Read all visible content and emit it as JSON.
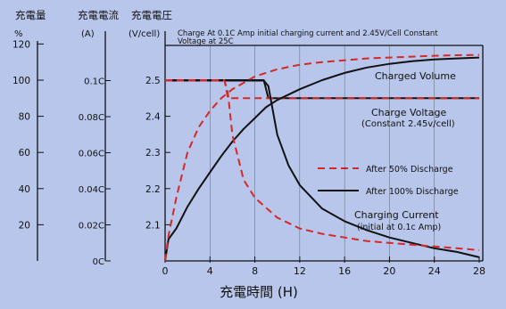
{
  "chart_data": {
    "type": "line",
    "header": {
      "capacity_label": "充電量",
      "current_label": "充電電流",
      "voltage_label": "充電電圧",
      "capacity_unit": "%",
      "current_unit": "(A)",
      "voltage_unit": "(V/cell)"
    },
    "note_lines": [
      "Charge At 0.1C Amp initial charging current  and 2.45V/Cell Constant",
      "Voltage  at 25C"
    ],
    "xlabel": "充電時間 (H)",
    "xlim": [
      0,
      28
    ],
    "xticks": [
      "0",
      "4",
      "8",
      "12",
      "16",
      "20",
      "24",
      "28"
    ],
    "ylim": [
      2.0,
      2.6
    ],
    "yticks": [
      "2.1",
      "2.2",
      "2.3",
      "2.4",
      "2.5"
    ],
    "capacity_axis": {
      "range": [
        0,
        120
      ],
      "ticks": [
        "20",
        "40",
        "60",
        "80",
        "100",
        "120"
      ]
    },
    "current_axis": {
      "range": [
        0,
        0.12
      ],
      "ticks": [
        "0C",
        "0.02C",
        "0.04C",
        "0.06C",
        "0.08C",
        "0.1C"
      ]
    },
    "annotations": {
      "charged_volume": "Charged Volume",
      "charge_voltage_1": "Charge Voltage",
      "charge_voltage_2": "(Constant 2.45v/cell)",
      "charging_current_1": "Charging Current",
      "charging_current_2": "(initial at 0.1c Amp)"
    },
    "legend": {
      "position": "right",
      "entries": [
        "After 50% Discharge",
        "After 100% Discharge"
      ]
    },
    "series": [
      {
        "name": "After 100% Discharge",
        "quantity": "charge_voltage",
        "axis": "voltage",
        "style": "solid",
        "x": [
          0,
          8.8,
          9.2,
          28
        ],
        "y": [
          2.5,
          2.5,
          2.45,
          2.45
        ]
      },
      {
        "name": "After 50% Discharge",
        "quantity": "charge_voltage",
        "axis": "voltage",
        "style": "dashed",
        "x": [
          0,
          5.3,
          5.6,
          28
        ],
        "y": [
          2.5,
          2.5,
          2.45,
          2.45
        ]
      },
      {
        "name": "After 100% Discharge",
        "quantity": "charged_volume",
        "axis": "capacity",
        "style": "solid",
        "x": [
          0,
          0.3,
          1,
          2,
          3,
          4,
          5,
          6,
          7,
          8,
          9,
          10,
          12,
          14,
          16,
          18,
          20,
          22,
          24,
          26,
          28
        ],
        "y": [
          0,
          12,
          18,
          30,
          40,
          49,
          58,
          66,
          73,
          79,
          85,
          89,
          95,
          100,
          104,
          107,
          109,
          110.5,
          111.5,
          112,
          112.5
        ]
      },
      {
        "name": "After 50% Discharge",
        "quantity": "charged_volume",
        "axis": "capacity",
        "style": "dashed",
        "x": [
          0,
          0.3,
          1,
          2,
          3,
          4,
          5,
          6,
          8,
          10,
          12,
          14,
          16,
          18,
          20,
          22,
          24,
          26,
          28
        ],
        "y": [
          0,
          14,
          35,
          60,
          74,
          83,
          90,
          95,
          102,
          106,
          108.5,
          110,
          111,
          112,
          112.5,
          113,
          113.5,
          113.8,
          114
        ]
      },
      {
        "name": "After 100% Discharge",
        "quantity": "charging_current",
        "axis": "current",
        "style": "solid",
        "x": [
          0,
          8.8,
          9.2,
          10,
          11,
          12,
          14,
          16,
          18,
          20,
          22,
          24,
          26,
          28
        ],
        "y": [
          0.1,
          0.1,
          0.097,
          0.07,
          0.053,
          0.042,
          0.029,
          0.022,
          0.017,
          0.013,
          0.01,
          0.007,
          0.005,
          0.002
        ]
      },
      {
        "name": "After 50% Discharge",
        "quantity": "charging_current",
        "axis": "current",
        "style": "dashed",
        "x": [
          0,
          5.3,
          5.6,
          6,
          7,
          8,
          10,
          12,
          14,
          16,
          18,
          20,
          22,
          24,
          26,
          28
        ],
        "y": [
          0.1,
          0.1,
          0.093,
          0.07,
          0.045,
          0.035,
          0.024,
          0.018,
          0.015,
          0.013,
          0.011,
          0.01,
          0.009,
          0.008,
          0.007,
          0.006
        ]
      }
    ]
  }
}
